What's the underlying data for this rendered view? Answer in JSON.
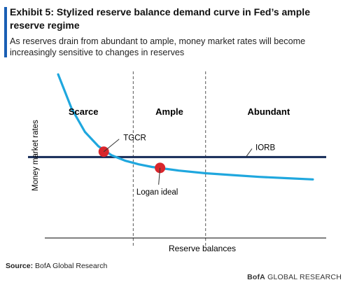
{
  "exhibit": {
    "title": "Exhibit 5: Stylized reserve balance demand curve in Fed’s ample reserve regime",
    "subtitle": "As reserves drain from abundant to ample, money market rates will become increasingly sensitive to changes in reserves"
  },
  "chart_data": {
    "type": "line",
    "xlabel": "Reserve balances",
    "ylabel": "Money market rates",
    "regions": [
      "Scarce",
      "Ample",
      "Abundant"
    ],
    "series": [
      {
        "name": "",
        "color": "#1fa7de",
        "x": [
          0.5,
          1,
          1.5,
          2,
          2.5,
          3,
          3.5,
          4,
          5,
          6,
          7,
          8,
          9,
          10
        ],
        "y": [
          10.6,
          8.7,
          7.4,
          6.6,
          6.1,
          5.8,
          5.6,
          5.45,
          5.25,
          5.1,
          5.0,
          4.9,
          4.83,
          4.76
        ]
      }
    ],
    "reference_lines": [
      {
        "label": "IORB",
        "y": 6.0,
        "color": "#142a57"
      }
    ],
    "region_boundaries": [
      3.3,
      6.0
    ],
    "points": [
      {
        "label": "TGCR",
        "x": 2.2,
        "y": 6.3,
        "color": "#d9262c"
      },
      {
        "label": "Logan ideal",
        "x": 4.3,
        "y": 5.4,
        "color": "#d9262c"
      }
    ],
    "xlim": [
      0,
      10.5
    ],
    "ylim": [
      1.5,
      11
    ],
    "grid": false
  },
  "footer": {
    "source_label": "Source:",
    "source_text": "BofA Global Research",
    "brand_strong": "BofA",
    "brand_text": "GLOBAL RESEARCH"
  }
}
